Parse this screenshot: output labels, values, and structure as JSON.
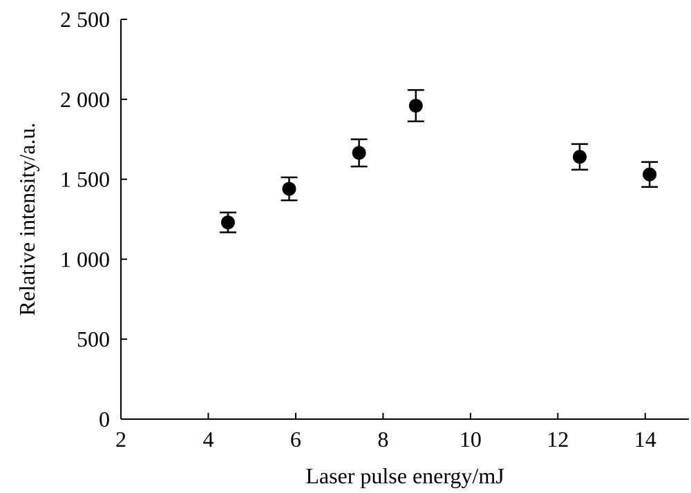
{
  "chart_data": {
    "type": "scatter",
    "title": "",
    "xlabel": "Laser pulse energy/mJ",
    "ylabel": "Relative intensity/a.u.",
    "xlim": [
      2,
      15
    ],
    "ylim": [
      0,
      2500
    ],
    "x_ticks": [
      2,
      4,
      6,
      8,
      10,
      12,
      14
    ],
    "y_ticks": [
      0,
      500,
      1000,
      1500,
      2000,
      2500
    ],
    "x_tick_labels": [
      "2",
      "4",
      "6",
      "8",
      "10",
      "12",
      "14"
    ],
    "y_tick_labels": [
      "0",
      "500",
      "1 000",
      "1 500",
      "2 000",
      "2 500"
    ],
    "grid": false,
    "series": [
      {
        "x": [
          4.45,
          5.85,
          7.45,
          8.75,
          12.5,
          14.1
        ],
        "y": [
          1230,
          1440,
          1665,
          1960,
          1640,
          1530
        ],
        "error": [
          62,
          72,
          85,
          98,
          80,
          78
        ]
      }
    ],
    "marker_color": "#000000"
  }
}
